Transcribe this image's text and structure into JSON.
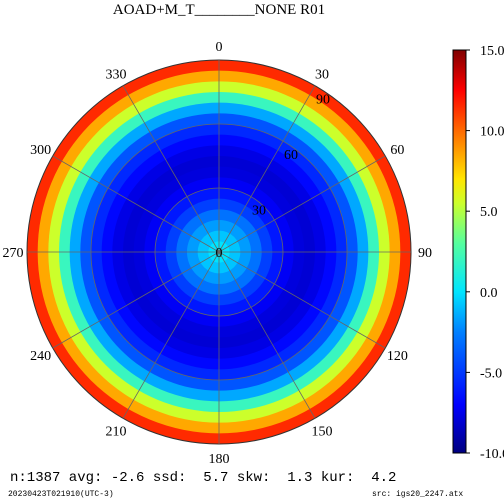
{
  "title": "AOAD+M_T________NONE R01",
  "stats": {
    "n": "1387",
    "avg": "-2.6",
    "ssd": "5.7",
    "skw": "1.3",
    "kur": "4.2",
    "line": "n:1387 avg: -2.6 ssd:  5.7 skw:  1.3 kur:  4.2"
  },
  "footer": {
    "timestamp": "20230423T021910(UTC-3)",
    "source": "src: igs20_2247.atx"
  },
  "chart_data": {
    "type": "heatmap",
    "subtype": "polar",
    "title": "AOAD+M_T________NONE R01",
    "angle_labels": [
      "0",
      "30",
      "60",
      "90",
      "120",
      "150",
      "180",
      "210",
      "240",
      "270",
      "300",
      "330"
    ],
    "radial_labels": [
      "0",
      "30",
      "60",
      "90"
    ],
    "radial_range": [
      0,
      90
    ],
    "grid": true,
    "rings": [
      {
        "zenith_from": 0,
        "zenith_to": 5,
        "value": 0.0
      },
      {
        "zenith_from": 5,
        "zenith_to": 10,
        "value": -0.8
      },
      {
        "zenith_from": 10,
        "zenith_to": 15,
        "value": -1.8
      },
      {
        "zenith_from": 15,
        "zenith_to": 20,
        "value": -3.0
      },
      {
        "zenith_from": 20,
        "zenith_to": 25,
        "value": -4.8
      },
      {
        "zenith_from": 25,
        "zenith_to": 30,
        "value": -6.2
      },
      {
        "zenith_from": 30,
        "zenith_to": 35,
        "value": -7.2
      },
      {
        "zenith_from": 35,
        "zenith_to": 40,
        "value": -7.8
      },
      {
        "zenith_from": 40,
        "zenith_to": 45,
        "value": -8.0
      },
      {
        "zenith_from": 45,
        "zenith_to": 50,
        "value": -7.6
      },
      {
        "zenith_from": 50,
        "zenith_to": 55,
        "value": -6.8
      },
      {
        "zenith_from": 55,
        "zenith_to": 60,
        "value": -5.6
      },
      {
        "zenith_from": 60,
        "zenith_to": 65,
        "value": -4.0
      },
      {
        "zenith_from": 65,
        "zenith_to": 70,
        "value": -1.5
      },
      {
        "zenith_from": 70,
        "zenith_to": 75,
        "value": 2.0
      },
      {
        "zenith_from": 75,
        "zenith_to": 80,
        "value": 5.5
      },
      {
        "zenith_from": 80,
        "zenith_to": 85,
        "value": 8.5
      },
      {
        "zenith_from": 85,
        "zenith_to": 90,
        "value": 11.5
      }
    ],
    "colorbar": {
      "min": -10.0,
      "max": 15.0,
      "ticks": [
        "15.0",
        "10.0",
        "5.0",
        "0.0",
        "-5.0",
        "-10.0"
      ],
      "tick_values": [
        15,
        10,
        5,
        0,
        -5,
        -10
      ]
    }
  }
}
